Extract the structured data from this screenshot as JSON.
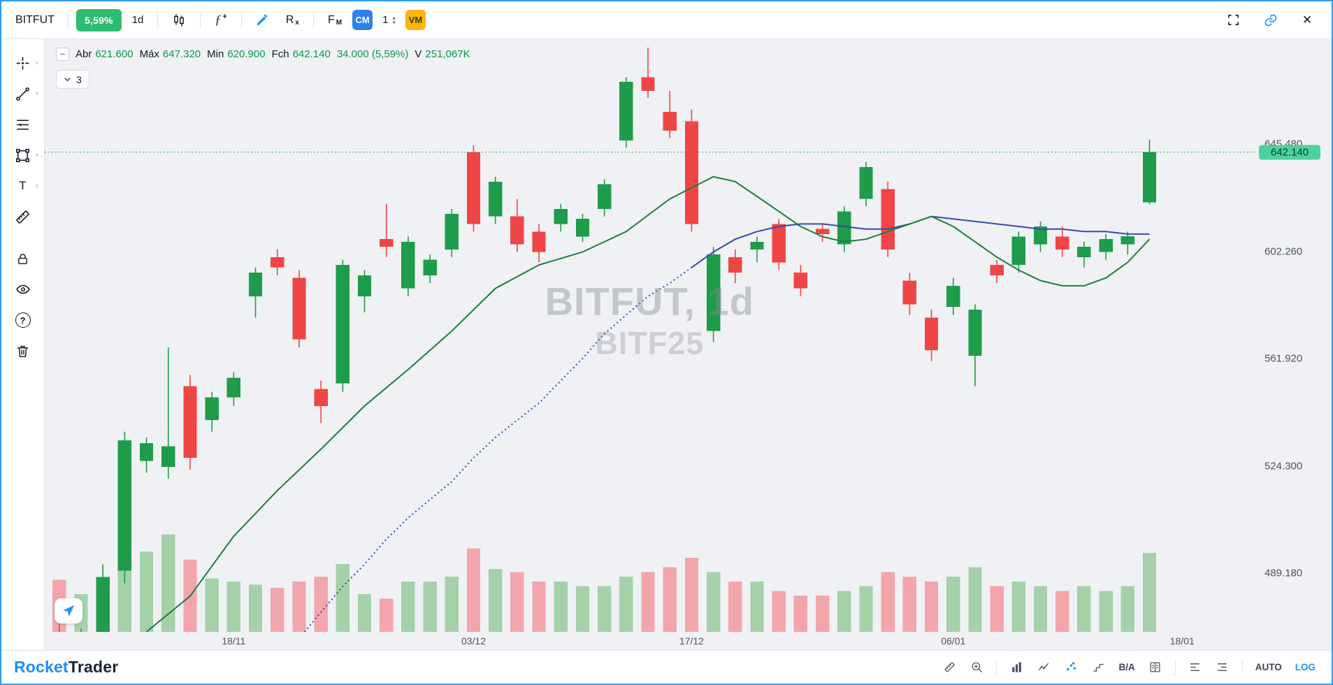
{
  "topbar": {
    "symbol": "BITFUT",
    "change_badge": "5,59%",
    "timeframe": "1d",
    "fn": "ƒ",
    "fn_plus": "+",
    "rx": "R",
    "rx_sub": "x",
    "fm": "F",
    "fm_sub": "M",
    "cm": "CM",
    "stepper_value": "1",
    "vm": "VM"
  },
  "icons": {
    "close": "✕",
    "minus": "−",
    "chevron_right": "›",
    "stepper_up": "▴",
    "stepper_down": "▾",
    "question": "?",
    "text_tool": "T"
  },
  "legend": {
    "items": [
      {
        "label": "Abr",
        "value": "621.600"
      },
      {
        "label": "Máx",
        "value": "647.320"
      },
      {
        "label": "Min",
        "value": "620.900"
      },
      {
        "label": "Fch",
        "value": "642.140"
      },
      {
        "label": "",
        "value": "34.000 (5,59%)"
      },
      {
        "label": "V",
        "value": "251,067K"
      }
    ],
    "collapsed_count": "3"
  },
  "watermark": {
    "line1": "BITFUT, 1d",
    "line2": "BITF25"
  },
  "price_axis": {
    "labels": [
      {
        "text": "645.480",
        "value": 645.48
      },
      {
        "text": "602.260",
        "value": 602.26
      },
      {
        "text": "561.920",
        "value": 561.92
      },
      {
        "text": "524.300",
        "value": 524.3
      },
      {
        "text": "489.180",
        "value": 489.18
      }
    ],
    "last_badge": "642.140"
  },
  "time_axis": [
    {
      "text": "18/11",
      "i": 8
    },
    {
      "text": "03/12",
      "i": 19
    },
    {
      "text": "17/12",
      "i": 29
    },
    {
      "text": "06/01",
      "i": 41
    },
    {
      "text": "18/01",
      "i": 51.5
    }
  ],
  "bottombar": {
    "brand_primary": "Rocket",
    "brand_secondary": "Trader",
    "bid_ask": "B/A",
    "auto": "AUTO",
    "log": "LOG"
  },
  "colors": {
    "accent_blue": "#2196f3",
    "change_badge_green": "#2ebd70",
    "cm_blue": "#2f80ed",
    "vm_amber": "#fbb50c",
    "legend_value_green": "#0a9950",
    "last_badge_bg": "#4cd2a0"
  },
  "chart_data": {
    "type": "candlestick",
    "symbol": "BITFUT",
    "interval": "1d",
    "contract": "BITF25",
    "log_scale": true,
    "grid": false,
    "legend_position": "top-left",
    "background": "#f0f1f4",
    "y_anchors": [
      [
        645.48,
        0.177
      ],
      [
        489.18,
        0.901
      ]
    ],
    "x0_frac": 0.012,
    "dx_frac": 0.018,
    "vol_max_k": 320,
    "vol_area_frac": 0.17,
    "last_price": 642.14,
    "columns": [
      "date",
      "open",
      "high",
      "low",
      "close",
      "volume_k"
    ],
    "candles": [
      [
        "06/11",
        468,
        474,
        462,
        465,
        165
      ],
      [
        "07/11",
        465,
        472,
        460,
        470,
        120
      ],
      [
        "08/11",
        470,
        492,
        464,
        488,
        95
      ],
      [
        "11/11",
        490,
        536,
        486,
        533,
        240
      ],
      [
        "12/11",
        526,
        534,
        522,
        532,
        255
      ],
      [
        "13/11",
        524,
        566,
        520,
        531,
        310
      ],
      [
        "14/11",
        552,
        556,
        523,
        527,
        230
      ],
      [
        "15/11",
        540,
        550,
        536,
        548,
        170
      ],
      [
        "18/11",
        548,
        557,
        545,
        555,
        160
      ],
      [
        "19/11",
        585,
        596,
        577,
        594,
        150
      ],
      [
        "20/11",
        600,
        603,
        593,
        596,
        140
      ],
      [
        "21/11",
        592,
        595,
        566,
        569,
        160
      ],
      [
        "22/11",
        551,
        554,
        539,
        545,
        175
      ],
      [
        "25/11",
        553,
        599,
        550,
        597,
        215
      ],
      [
        "26/11",
        585,
        595,
        579,
        593,
        120
      ],
      [
        "27/11",
        607,
        621,
        600,
        604,
        105
      ],
      [
        "28/11",
        588,
        608,
        585,
        606,
        160
      ],
      [
        "29/11",
        593,
        601,
        590,
        599,
        160
      ],
      [
        "02/12",
        603,
        619,
        600,
        617,
        175
      ],
      [
        "03/12",
        642,
        645,
        610,
        613,
        265
      ],
      [
        "04/12",
        616,
        632,
        613,
        630,
        200
      ],
      [
        "05/12",
        616,
        623,
        602,
        605,
        190
      ],
      [
        "06/12",
        610,
        613,
        598,
        602,
        160
      ],
      [
        "09/12",
        613,
        621,
        610,
        619,
        160
      ],
      [
        "10/12",
        608,
        617,
        606,
        615,
        145
      ],
      [
        "11/12",
        619,
        631,
        616,
        629,
        145
      ],
      [
        "12/12",
        647,
        674,
        644,
        672,
        175
      ],
      [
        "13/12",
        674,
        687,
        665,
        668,
        190
      ],
      [
        "16/12",
        659,
        668,
        648,
        651,
        205
      ],
      [
        "17/12",
        655,
        660,
        610,
        613,
        235
      ],
      [
        "18/12",
        572,
        604,
        568,
        601,
        190
      ],
      [
        "19/12",
        600,
        603,
        590,
        594,
        160
      ],
      [
        "20/12",
        603,
        608,
        598,
        606,
        160
      ],
      [
        "23/12",
        613,
        615,
        595,
        598,
        130
      ],
      [
        "24/12",
        594,
        597,
        585,
        588,
        115
      ],
      [
        "26/12",
        611,
        613,
        606,
        609,
        115
      ],
      [
        "27/12",
        605,
        620,
        602,
        618,
        130
      ],
      [
        "30/12",
        623,
        638,
        620,
        636,
        145
      ],
      [
        "31/12",
        627,
        630,
        600,
        603,
        190
      ],
      [
        "02/01",
        591,
        594,
        578,
        582,
        175
      ],
      [
        "03/01",
        577,
        580,
        561,
        565,
        160
      ],
      [
        "06/01",
        581,
        592,
        578,
        589,
        175
      ],
      [
        "07/01",
        563,
        582,
        552,
        580,
        205
      ],
      [
        "08/01",
        597,
        599,
        590,
        593,
        145
      ],
      [
        "09/01",
        597,
        610,
        594,
        608,
        160
      ],
      [
        "10/01",
        605,
        614,
        602,
        612,
        145
      ],
      [
        "13/01",
        608,
        612,
        600,
        603,
        130
      ],
      [
        "14/01",
        600,
        606,
        596,
        604,
        145
      ],
      [
        "15/01",
        602,
        609,
        599,
        607,
        130
      ],
      [
        "16/01",
        605,
        610,
        601,
        608.14,
        145
      ],
      [
        "17/01",
        621.6,
        647.32,
        620.9,
        642.14,
        251.067
      ]
    ],
    "ma_fast": {
      "color": "#1b7e3c",
      "points": [
        [
          4,
          471
        ],
        [
          6,
          482
        ],
        [
          8,
          501
        ],
        [
          10,
          516
        ],
        [
          12,
          530
        ],
        [
          14,
          545
        ],
        [
          16,
          558
        ],
        [
          18,
          572
        ],
        [
          20,
          588
        ],
        [
          22,
          597
        ],
        [
          24,
          602
        ],
        [
          26,
          610
        ],
        [
          28,
          623
        ],
        [
          30,
          632
        ],
        [
          31,
          630
        ],
        [
          32,
          624
        ],
        [
          33,
          618
        ],
        [
          34,
          612
        ],
        [
          35,
          608
        ],
        [
          36,
          606
        ],
        [
          37,
          607
        ],
        [
          38,
          610
        ],
        [
          39,
          613
        ],
        [
          40,
          616
        ],
        [
          41,
          612
        ],
        [
          42,
          606
        ],
        [
          43,
          600
        ],
        [
          44,
          595
        ],
        [
          45,
          591
        ],
        [
          46,
          589
        ],
        [
          47,
          589
        ],
        [
          48,
          592
        ],
        [
          49,
          598
        ],
        [
          50,
          607
        ]
      ]
    },
    "ma_slow": {
      "color": "#3949ab",
      "dash_until": 29,
      "points": [
        [
          11,
          469
        ],
        [
          12,
          477
        ],
        [
          13,
          485
        ],
        [
          14,
          492
        ],
        [
          15,
          500
        ],
        [
          16,
          507
        ],
        [
          17,
          513
        ],
        [
          18,
          519
        ],
        [
          19,
          527
        ],
        [
          20,
          534
        ],
        [
          21,
          540
        ],
        [
          22,
          546
        ],
        [
          23,
          554
        ],
        [
          24,
          562
        ],
        [
          25,
          571
        ],
        [
          26,
          578
        ],
        [
          27,
          585
        ],
        [
          28,
          590
        ],
        [
          29,
          596
        ],
        [
          30,
          602
        ],
        [
          31,
          607
        ],
        [
          32,
          610
        ],
        [
          33,
          612
        ],
        [
          34,
          613
        ],
        [
          35,
          613
        ],
        [
          36,
          612
        ],
        [
          37,
          611
        ],
        [
          38,
          611
        ],
        [
          39,
          613
        ],
        [
          40,
          616
        ],
        [
          41,
          615
        ],
        [
          42,
          614
        ],
        [
          43,
          613
        ],
        [
          44,
          612
        ],
        [
          45,
          611
        ],
        [
          46,
          611
        ],
        [
          47,
          610
        ],
        [
          48,
          610
        ],
        [
          49,
          609
        ],
        [
          50,
          609
        ]
      ]
    },
    "colors": {
      "up": "#1e9c49",
      "down": "#ef4545",
      "vol_up": "#a5d1a9",
      "vol_down": "#f2a6ab",
      "last_line": "#26a248"
    }
  }
}
